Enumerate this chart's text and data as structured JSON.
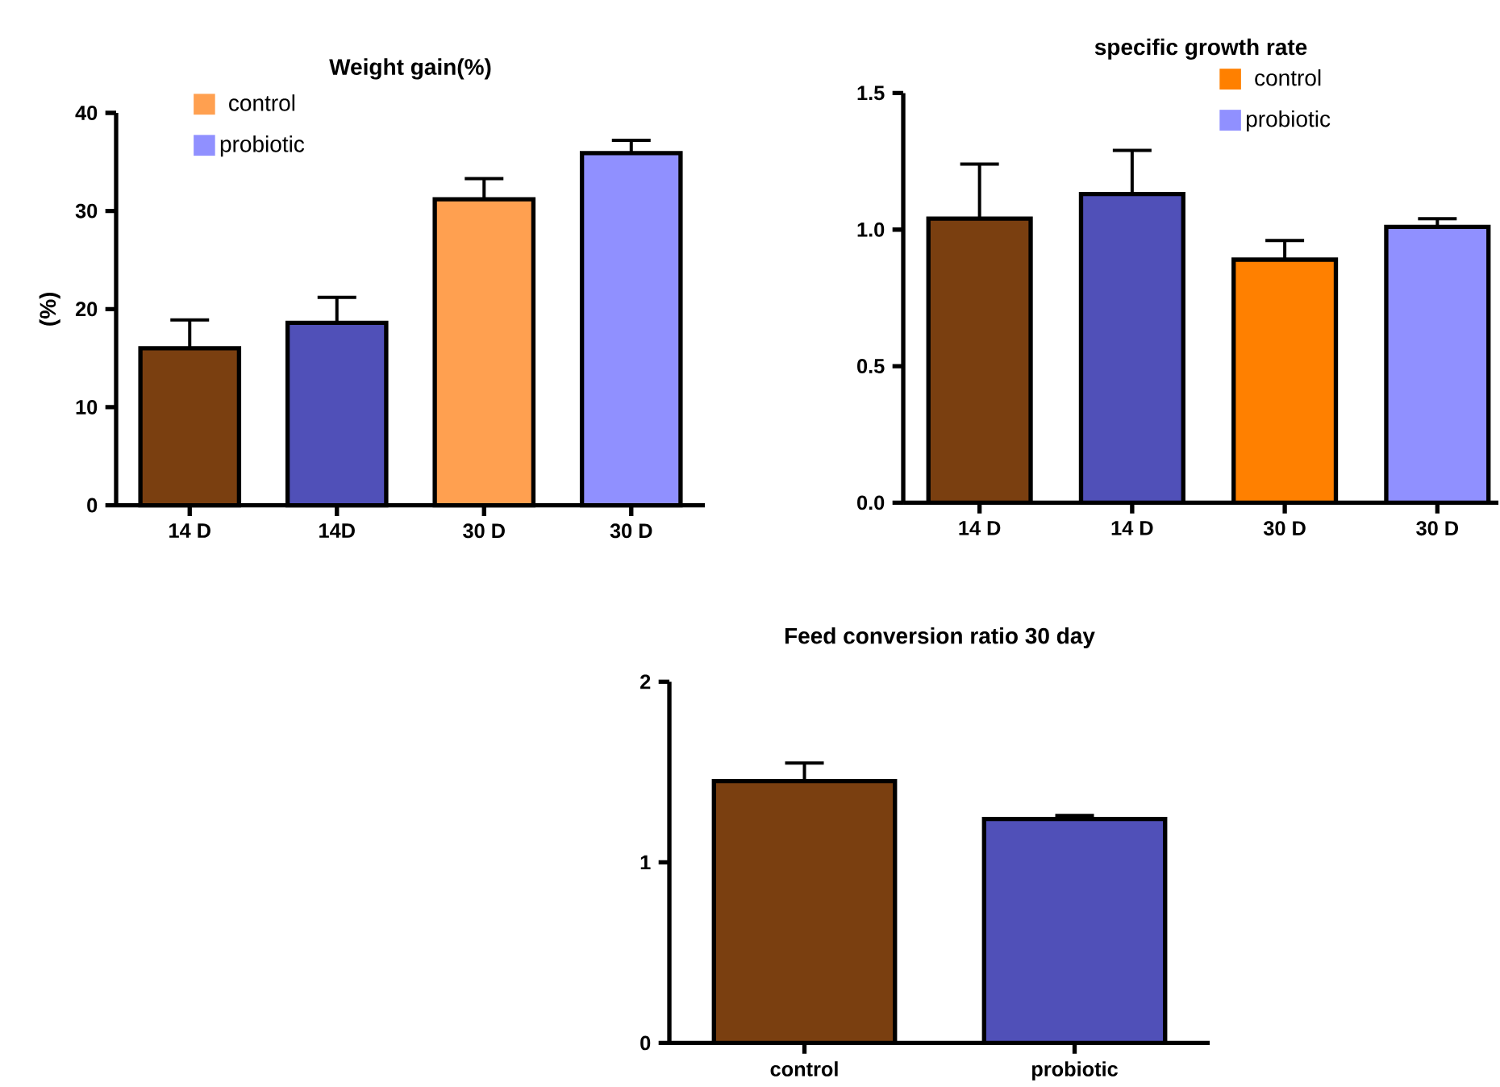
{
  "chart_data": [
    {
      "type": "bar",
      "title": "Weight gain(%)",
      "ylabel": "(%)",
      "categories": [
        "14 D",
        "14D",
        "30 D",
        "30 D"
      ],
      "series": [
        {
          "name": "control",
          "color": "#ffa050",
          "colors": [
            "#7a3f10",
            null,
            null,
            null
          ],
          "values": [
            16,
            null,
            31.2,
            null
          ],
          "errors": [
            2.9,
            null,
            2.1,
            null
          ]
        },
        {
          "name": "probiotic",
          "color": "#9090ff",
          "colors": [
            null,
            "#5050b8",
            null,
            null
          ],
          "values": [
            null,
            18.6,
            null,
            35.9
          ],
          "errors": [
            null,
            2.6,
            null,
            1.3
          ]
        }
      ],
      "ylim": [
        0,
        40
      ],
      "yticks": [
        0,
        10,
        20,
        30,
        40
      ],
      "legend": "top left",
      "grid": false
    },
    {
      "type": "bar",
      "title": "specific growth rate",
      "categories": [
        "14 D",
        "14 D",
        "30 D",
        "30 D"
      ],
      "series": [
        {
          "name": "control",
          "color": "#ff8000",
          "colors": [
            "#7a3f10",
            null,
            null,
            null
          ],
          "values": [
            1.04,
            null,
            0.89,
            null
          ],
          "errors": [
            0.2,
            null,
            0.07,
            null
          ]
        },
        {
          "name": "probiotic",
          "color": "#9090ff",
          "colors": [
            null,
            "#5050b8",
            null,
            null
          ],
          "values": [
            null,
            1.13,
            null,
            1.01
          ],
          "errors": [
            null,
            0.16,
            null,
            0.03
          ]
        }
      ],
      "ylim": [
        0,
        1.5
      ],
      "yticks": [
        {
          "value": 0,
          "label": "0.0"
        },
        0.5,
        {
          "value": 1,
          "label": "1.0"
        },
        1.5
      ],
      "legend": "top right",
      "grid": false
    },
    {
      "type": "bar",
      "title": "Feed conversion ratio 30 day",
      "categories": [
        "control",
        "probiotic"
      ],
      "values": [
        1.45,
        1.24
      ],
      "colors": [
        "#7a3f10",
        "#5050b8"
      ],
      "errors": [
        0.1,
        0.02
      ],
      "ylim": [
        0,
        2
      ],
      "yticks": [
        0,
        1,
        2
      ],
      "grid": false
    }
  ]
}
